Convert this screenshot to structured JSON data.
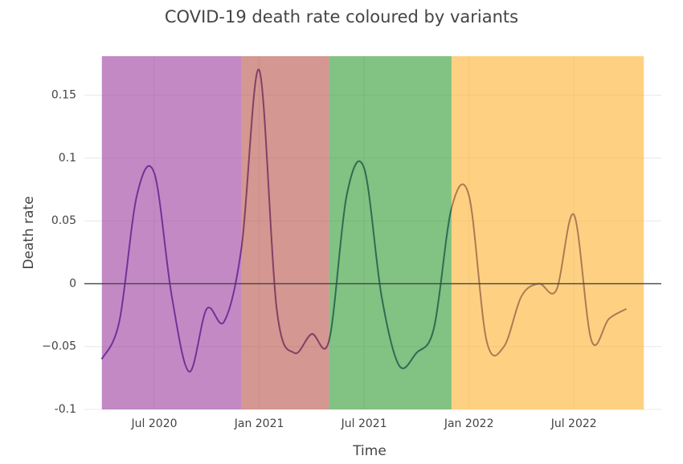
{
  "chart_data": {
    "type": "line",
    "title": "COVID-19 death rate coloured by variants",
    "x_label": "Time",
    "y_label": "Death rate",
    "x": [
      "2020-04",
      "2020-05",
      "2020-06",
      "2020-07",
      "2020-08",
      "2020-09",
      "2020-10",
      "2020-11",
      "2020-12",
      "2021-01",
      "2021-02",
      "2021-03",
      "2021-04",
      "2021-05",
      "2021-06",
      "2021-07",
      "2021-08",
      "2021-09",
      "2021-10",
      "2021-11",
      "2021-12",
      "2022-01",
      "2022-02",
      "2022-03",
      "2022-04",
      "2022-05",
      "2022-06",
      "2022-07",
      "2022-08",
      "2022-09",
      "2022-10"
    ],
    "series": [
      {
        "color": "#2f2a8c",
        "values": [
          -0.06,
          -0.03,
          0.07,
          0.088,
          -0.01,
          -0.07,
          -0.02,
          -0.03,
          0.03,
          0.17,
          -0.02,
          -0.055,
          -0.04,
          -0.045,
          0.07,
          0.092,
          -0.01,
          -0.065,
          -0.055,
          -0.035,
          0.06,
          0.07,
          -0.045,
          -0.05,
          -0.01,
          0.0,
          -0.005,
          0.055,
          -0.045,
          -0.028,
          -0.02
        ]
      }
    ],
    "bands": [
      {
        "start": "2020-04",
        "end": "2020-12",
        "color": "#9b3a9e"
      },
      {
        "start": "2020-12",
        "end": "2021-05",
        "color": "#b8524a"
      },
      {
        "start": "2021-05",
        "end": "2021-12",
        "color": "#2e9a2e"
      },
      {
        "start": "2021-12",
        "end": "2022-11",
        "color": "#fdb22f"
      }
    ],
    "xlim": [
      "2020-03",
      "2022-12"
    ],
    "xticks": [
      {
        "value": "2020-07",
        "label": "Jul 2020"
      },
      {
        "value": "2021-01",
        "label": "Jan 2021"
      },
      {
        "value": "2021-07",
        "label": "Jul 2021"
      },
      {
        "value": "2022-01",
        "label": "Jan 2022"
      },
      {
        "value": "2022-07",
        "label": "Jul 2022"
      }
    ],
    "ylim": [
      -0.1,
      0.181
    ],
    "yticks": [
      -0.1,
      {
        "value": -0.05,
        "label": "−0.05"
      },
      0,
      0.05,
      0.1,
      0.15
    ],
    "grid": true
  }
}
